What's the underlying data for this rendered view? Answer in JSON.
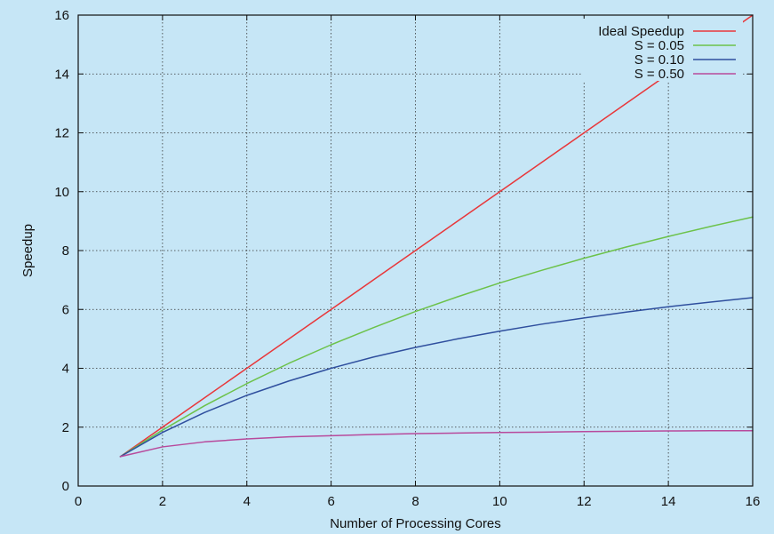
{
  "chart_data": {
    "type": "line",
    "xlabel": "Number of Processing Cores",
    "ylabel": "Speedup",
    "xlim": [
      0,
      16
    ],
    "ylim": [
      0,
      16
    ],
    "x_ticks": [
      "0",
      "2",
      "4",
      "6",
      "8",
      "10",
      "12",
      "14",
      "16"
    ],
    "y_ticks": [
      "0",
      "2",
      "4",
      "6",
      "8",
      "10",
      "12",
      "14",
      "16"
    ],
    "grid": true,
    "legend_position": "top-right",
    "x": [
      1,
      2,
      3,
      4,
      5,
      6,
      7,
      8,
      9,
      10,
      11,
      12,
      13,
      14,
      15,
      16
    ],
    "series": [
      {
        "name": "Ideal Speedup",
        "color": "#e8373a",
        "values": [
          1,
          2,
          3,
          4,
          5,
          6,
          7,
          8,
          9,
          10,
          11,
          12,
          13,
          14,
          15,
          16
        ]
      },
      {
        "name": "S = 0.05",
        "color": "#6cc24a",
        "values": [
          1,
          1.9,
          2.73,
          3.48,
          4.17,
          4.8,
          5.38,
          5.93,
          6.43,
          6.9,
          7.33,
          7.74,
          8.12,
          8.48,
          8.82,
          9.14
        ]
      },
      {
        "name": "S = 0.10",
        "color": "#2f4f9e",
        "values": [
          1,
          1.82,
          2.5,
          3.08,
          3.57,
          4.0,
          4.38,
          4.71,
          5.0,
          5.26,
          5.5,
          5.71,
          5.91,
          6.09,
          6.25,
          6.4
        ]
      },
      {
        "name": "S = 0.50",
        "color": "#b84a9c",
        "values": [
          1,
          1.33,
          1.5,
          1.6,
          1.67,
          1.71,
          1.75,
          1.78,
          1.8,
          1.82,
          1.83,
          1.85,
          1.86,
          1.87,
          1.88,
          1.88
        ]
      }
    ]
  }
}
